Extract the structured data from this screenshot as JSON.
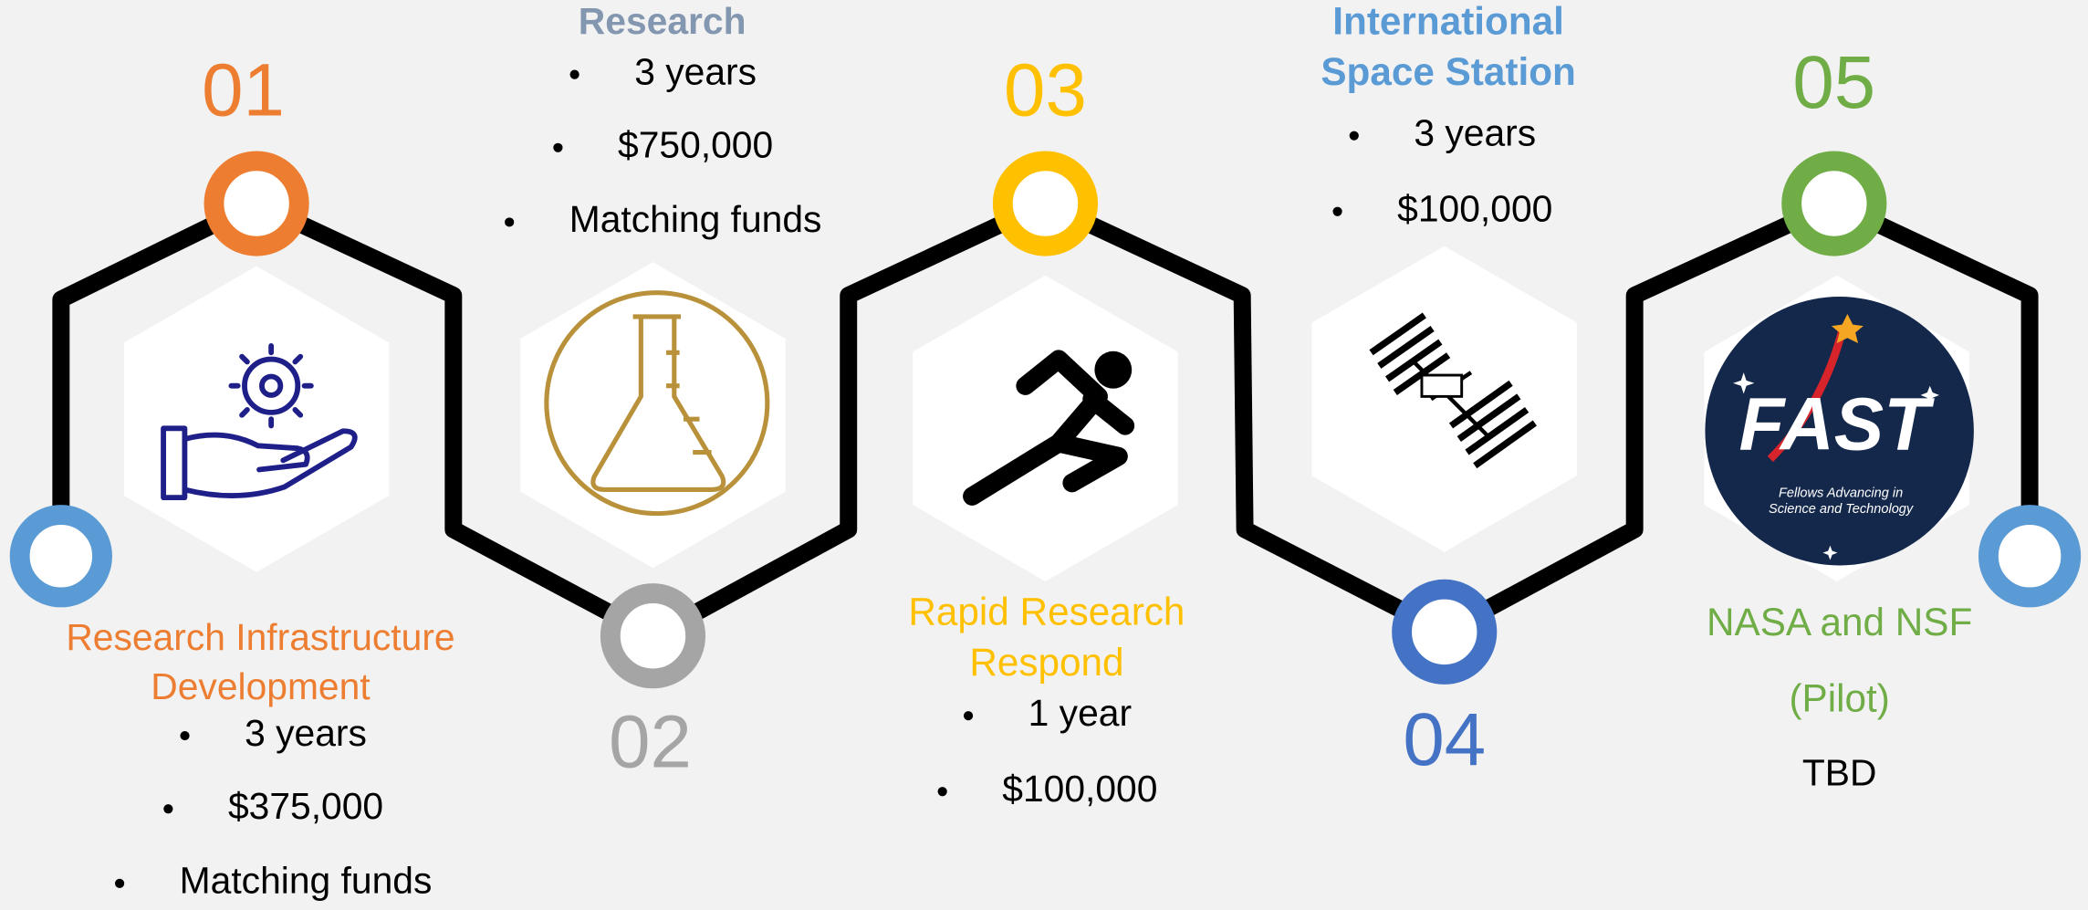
{
  "steps": [
    {
      "number": "01",
      "title_lines": [
        "Research Infrastructure",
        "Development"
      ],
      "bullets": [
        "3 years",
        "$375,000",
        "Matching funds"
      ]
    },
    {
      "number": "02",
      "title_lines": [
        "Research"
      ],
      "bullets": [
        "3 years",
        "$750,000",
        "Matching funds"
      ]
    },
    {
      "number": "03",
      "title_lines": [
        "Rapid Research",
        "Respond"
      ],
      "bullets": [
        "1 year",
        "$100,000"
      ]
    },
    {
      "number": "04",
      "title_lines": [
        "International",
        "Space Station"
      ],
      "bullets": [
        "3 years",
        "$100,000"
      ]
    },
    {
      "number": "05",
      "title_lines": [
        "NASA and NSF",
        "(Pilot)"
      ],
      "note": "TBD"
    }
  ],
  "logo": {
    "name": "FAST",
    "tagline_lines": [
      "Fellows Advancing in",
      "Science and Technology"
    ]
  }
}
